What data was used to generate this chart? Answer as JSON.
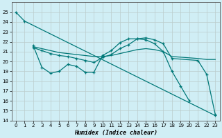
{
  "xlabel": "Humidex (Indice chaleur)",
  "xlim": [
    -0.5,
    23.5
  ],
  "ylim": [
    14,
    26
  ],
  "yticks": [
    14,
    15,
    16,
    17,
    18,
    19,
    20,
    21,
    22,
    23,
    24,
    25
  ],
  "xticks": [
    0,
    1,
    2,
    3,
    4,
    5,
    6,
    7,
    8,
    9,
    10,
    11,
    12,
    13,
    14,
    15,
    16,
    17,
    18,
    19,
    20,
    21,
    22,
    23
  ],
  "bg_color": "#d0eef5",
  "grid_major_color": "#bbcccc",
  "line_color": "#007878",
  "line1_x": [
    0,
    1,
    23
  ],
  "line1_y": [
    25.0,
    24.1,
    14.5
  ],
  "line2_x": [
    2,
    3,
    4,
    5,
    6,
    7,
    8,
    9,
    10,
    11,
    12,
    13,
    14,
    15,
    16,
    17,
    18,
    19,
    20
  ],
  "line2_y": [
    21.6,
    19.4,
    18.8,
    19.0,
    19.7,
    19.5,
    18.9,
    18.9,
    20.6,
    21.1,
    21.9,
    22.3,
    22.3,
    22.2,
    21.8,
    21.0,
    19.0,
    17.5,
    16.0
  ],
  "line3_x": [
    2,
    3,
    4,
    5,
    6,
    7,
    8,
    9,
    10,
    11,
    12,
    13,
    14,
    15,
    16,
    17,
    18,
    21,
    22,
    23
  ],
  "line3_y": [
    21.5,
    21.3,
    21.1,
    20.9,
    20.8,
    20.7,
    20.6,
    20.5,
    20.5,
    20.6,
    20.8,
    21.0,
    21.2,
    21.3,
    21.2,
    21.0,
    20.5,
    20.3,
    20.2,
    20.2
  ],
  "line4_x": [
    2,
    3,
    4,
    5,
    6,
    7,
    8,
    9,
    10,
    11,
    12,
    13,
    14,
    15,
    16,
    17,
    18,
    21,
    22,
    23
  ],
  "line4_y": [
    21.4,
    21.1,
    20.8,
    20.6,
    20.5,
    20.3,
    20.1,
    19.9,
    20.4,
    20.7,
    21.3,
    21.7,
    22.3,
    22.4,
    22.2,
    21.8,
    20.3,
    20.1,
    18.7,
    14.6
  ]
}
